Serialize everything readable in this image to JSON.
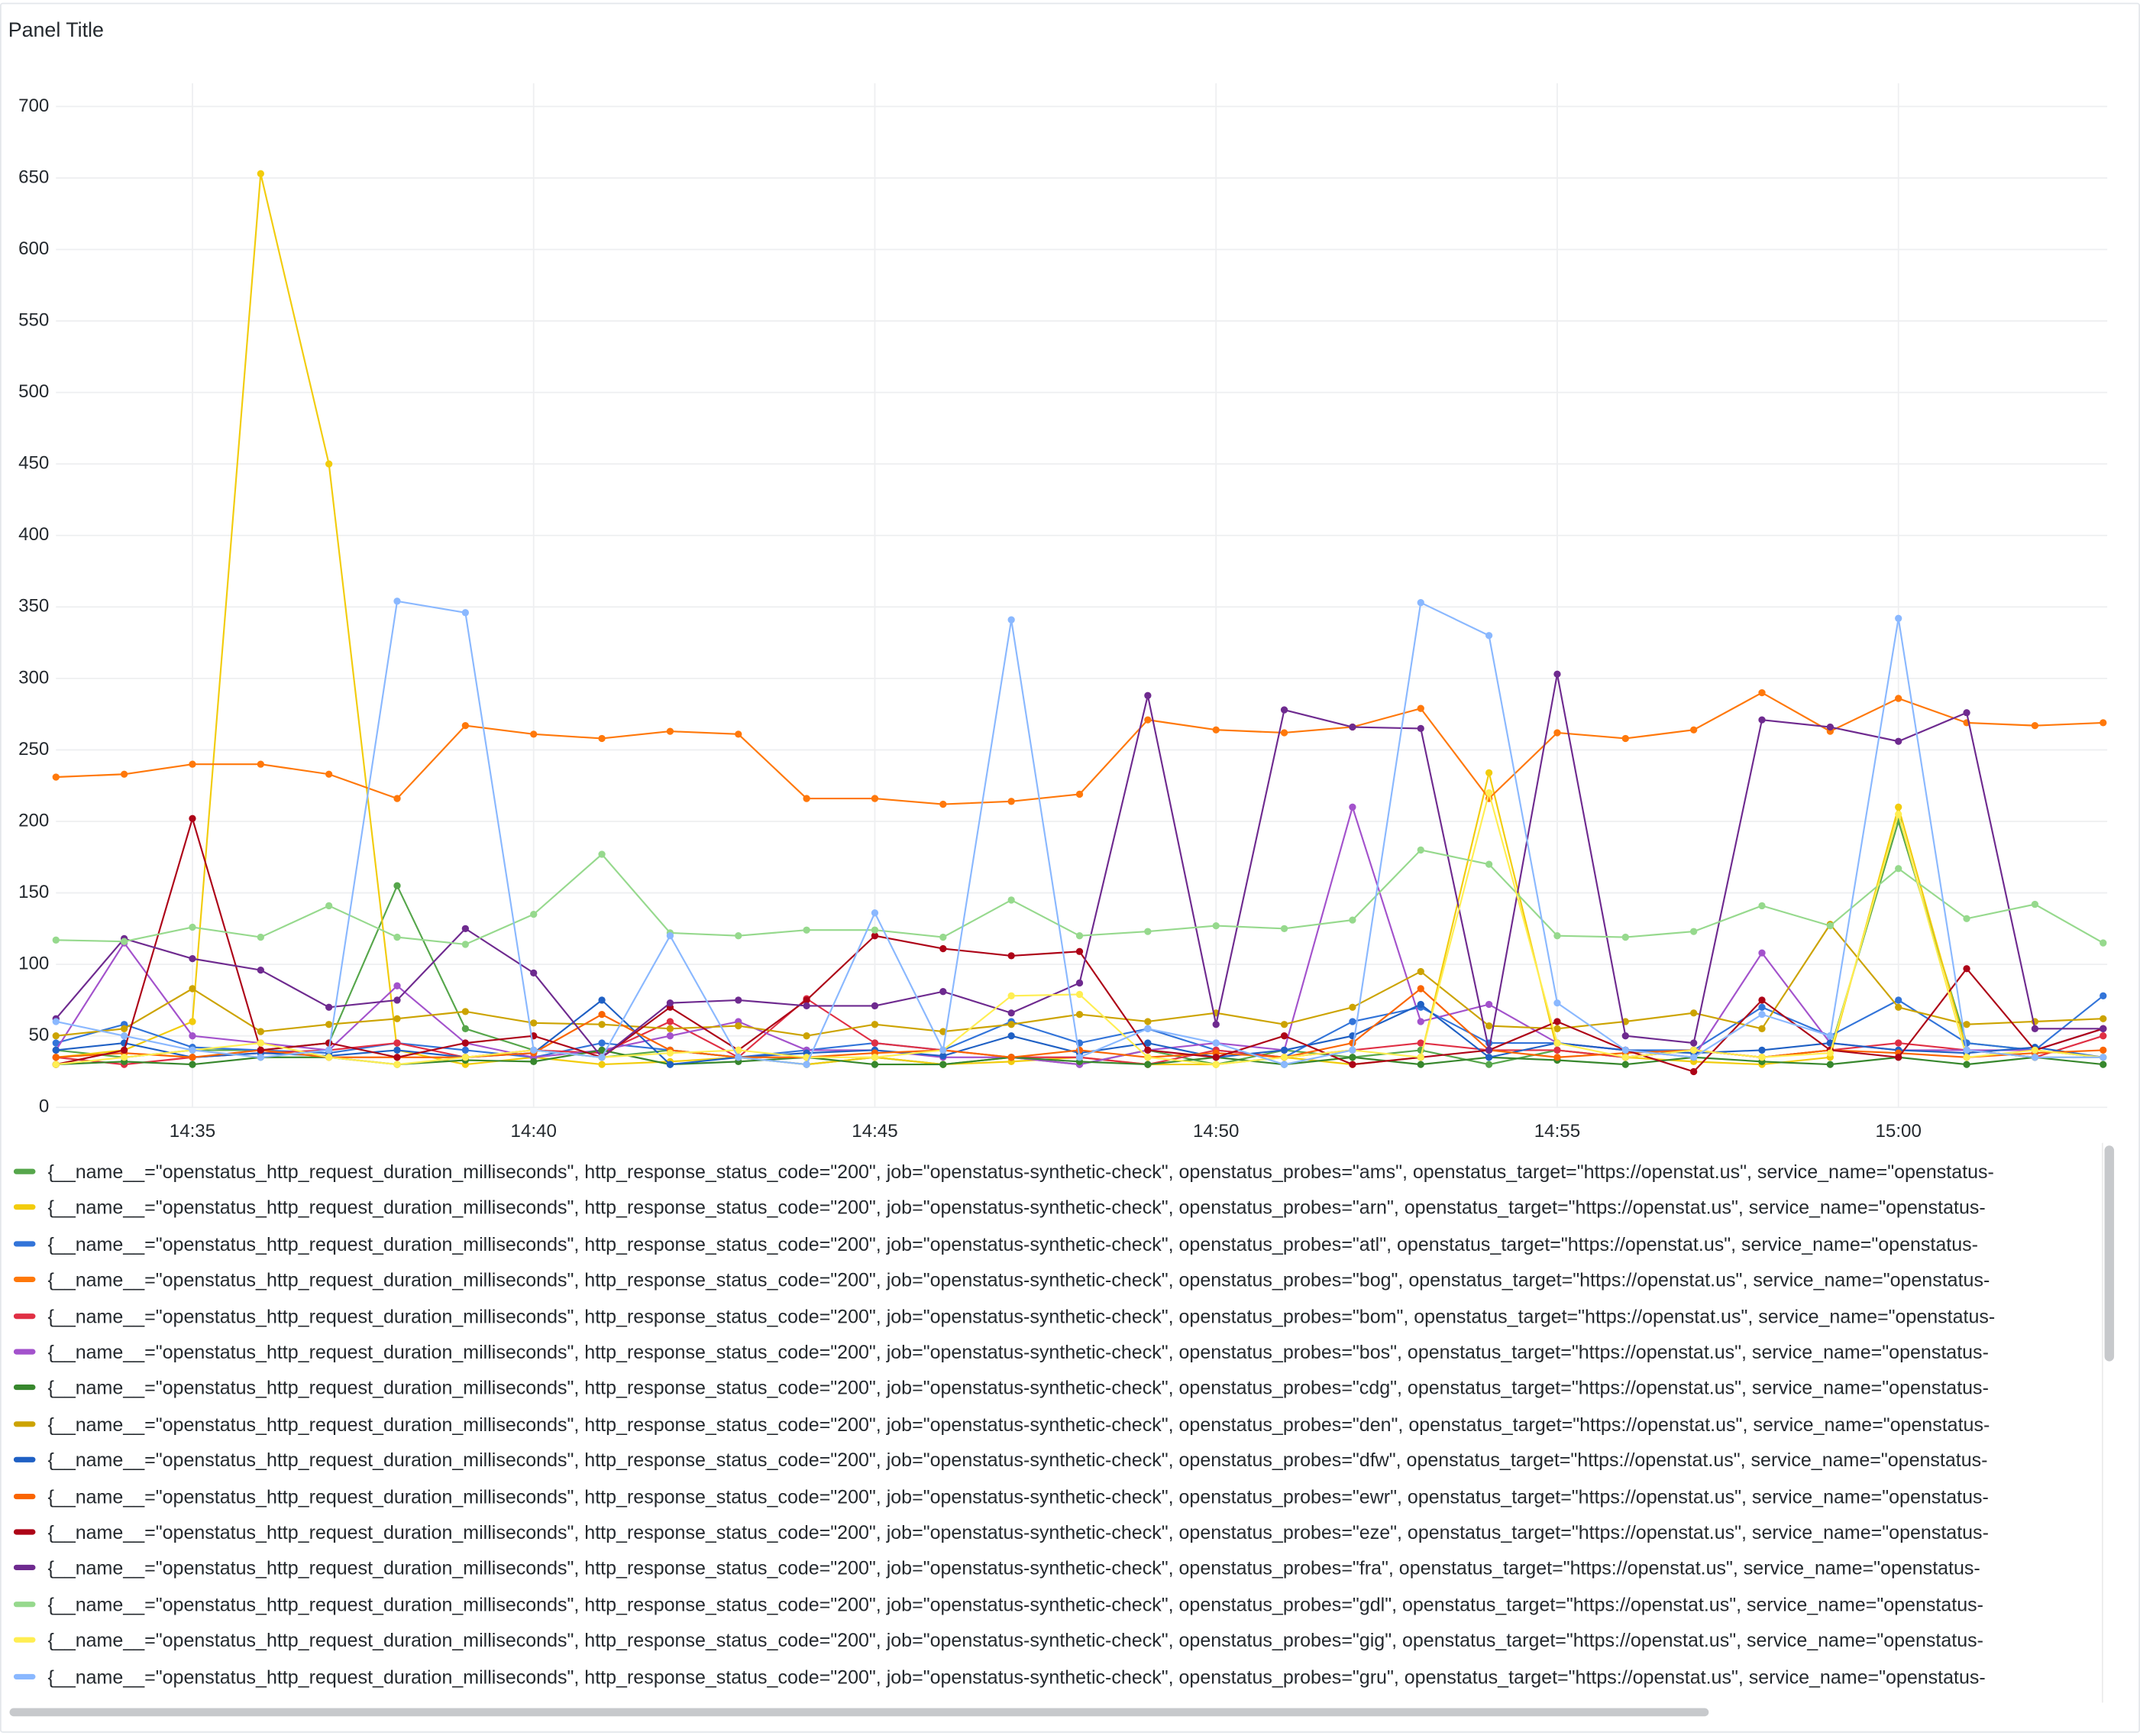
{
  "chart_data": {
    "type": "line",
    "title": "Panel Title",
    "x": [
      "14:33",
      "14:34",
      "14:35",
      "14:36",
      "14:37",
      "14:38",
      "14:39",
      "14:40",
      "14:41",
      "14:42",
      "14:43",
      "14:44",
      "14:45",
      "14:46",
      "14:47",
      "14:48",
      "14:49",
      "14:50",
      "14:51",
      "14:52",
      "14:53",
      "14:54",
      "14:55",
      "14:56",
      "14:57",
      "14:58",
      "14:59",
      "15:00",
      "15:01",
      "15:02",
      "15:03"
    ],
    "xlim": [
      "14:33",
      "15:03"
    ],
    "xticks": [
      "14:35",
      "14:40",
      "14:45",
      "14:50",
      "14:55",
      "15:00"
    ],
    "ylim": [
      0,
      700
    ],
    "yticks": [
      0,
      50,
      100,
      150,
      200,
      250,
      300,
      350,
      400,
      450,
      500,
      550,
      600,
      650,
      700
    ],
    "grid": true,
    "series": [
      {
        "name": "{__name__=\"openstatus_http_request_duration_milliseconds\", http_response_status_code=\"200\", job=\"openstatus-synthetic-check\", openstatus_probes=\"ams\", openstatus_target=\"https://openstat.us\", service_name=\"openstatus-",
        "color": "#56a64b",
        "values": [
          40,
          35,
          40,
          40,
          45,
          155,
          55,
          40,
          35,
          40,
          35,
          30,
          35,
          30,
          35,
          30,
          40,
          30,
          40,
          35,
          40,
          30,
          40,
          35,
          40,
          35,
          40,
          200,
          45,
          40,
          35
        ]
      },
      {
        "name": "{__name__=\"openstatus_http_request_duration_milliseconds\", http_response_status_code=\"200\", job=\"openstatus-synthetic-check\", openstatus_probes=\"arn\", openstatus_target=\"https://openstat.us\", service_name=\"openstatus-",
        "color": "#f2cc0c",
        "values": [
          35,
          40,
          60,
          653,
          450,
          40,
          30,
          35,
          30,
          32,
          35,
          30,
          35,
          30,
          32,
          35,
          30,
          30,
          35,
          30,
          35,
          234,
          40,
          35,
          32,
          30,
          35,
          210,
          40,
          35,
          35
        ]
      },
      {
        "name": "{__name__=\"openstatus_http_request_duration_milliseconds\", http_response_status_code=\"200\", job=\"openstatus-synthetic-check\", openstatus_probes=\"atl\", openstatus_target=\"https://openstat.us\", service_name=\"openstatus-",
        "color": "#3274d9",
        "values": [
          45,
          58,
          42,
          40,
          38,
          45,
          40,
          35,
          45,
          40,
          35,
          40,
          45,
          40,
          60,
          45,
          55,
          40,
          35,
          60,
          70,
          45,
          45,
          40,
          40,
          70,
          50,
          75,
          45,
          40,
          78
        ]
      },
      {
        "name": "{__name__=\"openstatus_http_request_duration_milliseconds\", http_response_status_code=\"200\", job=\"openstatus-synthetic-check\", openstatus_probes=\"bog\", openstatus_target=\"https://openstat.us\", service_name=\"openstatus-",
        "color": "#ff780a",
        "values": [
          231,
          233,
          240,
          240,
          233,
          216,
          267,
          261,
          258,
          263,
          261,
          216,
          216,
          212,
          214,
          219,
          271,
          264,
          262,
          266,
          279,
          216,
          262,
          258,
          264,
          290,
          263,
          286,
          269,
          267,
          269
        ]
      },
      {
        "name": "{__name__=\"openstatus_http_request_duration_milliseconds\", http_response_status_code=\"200\", job=\"openstatus-synthetic-check\", openstatus_probes=\"bom\", openstatus_target=\"https://openstat.us\", service_name=\"openstatus-",
        "color": "#e02f44",
        "values": [
          35,
          30,
          35,
          38,
          40,
          45,
          35,
          40,
          38,
          60,
          35,
          76,
          45,
          40,
          35,
          35,
          30,
          40,
          35,
          40,
          45,
          40,
          40,
          35,
          40,
          35,
          40,
          45,
          40,
          35,
          50
        ]
      },
      {
        "name": "{__name__=\"openstatus_http_request_duration_milliseconds\", http_response_status_code=\"200\", job=\"openstatus-synthetic-check\", openstatus_probes=\"bos\", openstatus_target=\"https://openstat.us\", service_name=\"openstatus-",
        "color": "#a352cc",
        "values": [
          40,
          115,
          50,
          45,
          40,
          85,
          45,
          35,
          40,
          50,
          60,
          40,
          40,
          35,
          35,
          30,
          40,
          45,
          40,
          210,
          60,
          72,
          45,
          40,
          35,
          108,
          45,
          40,
          40,
          40,
          55
        ]
      },
      {
        "name": "{__name__=\"openstatus_http_request_duration_milliseconds\", http_response_status_code=\"200\", job=\"openstatus-synthetic-check\", openstatus_probes=\"cdg\", openstatus_target=\"https://openstat.us\", service_name=\"openstatus-",
        "color": "#37872d",
        "values": [
          30,
          32,
          30,
          35,
          35,
          30,
          33,
          32,
          40,
          30,
          32,
          35,
          30,
          30,
          35,
          32,
          30,
          35,
          30,
          35,
          30,
          35,
          33,
          30,
          35,
          32,
          30,
          35,
          30,
          35,
          30
        ]
      },
      {
        "name": "{__name__=\"openstatus_http_request_duration_milliseconds\", http_response_status_code=\"200\", job=\"openstatus-synthetic-check\", openstatus_probes=\"den\", openstatus_target=\"https://openstat.us\", service_name=\"openstatus-",
        "color": "#cca300",
        "values": [
          50,
          55,
          83,
          53,
          58,
          62,
          67,
          59,
          58,
          55,
          57,
          50,
          58,
          53,
          58,
          65,
          60,
          66,
          58,
          70,
          95,
          57,
          55,
          60,
          66,
          55,
          128,
          70,
          58,
          60,
          62
        ]
      },
      {
        "name": "{__name__=\"openstatus_http_request_duration_milliseconds\", http_response_status_code=\"200\", job=\"openstatus-synthetic-check\", openstatus_probes=\"dfw\", openstatus_target=\"https://openstat.us\", service_name=\"openstatus-",
        "color": "#1f60c4",
        "values": [
          40,
          45,
          35,
          38,
          36,
          40,
          35,
          38,
          75,
          30,
          35,
          38,
          40,
          36,
          50,
          38,
          45,
          35,
          40,
          50,
          72,
          35,
          45,
          40,
          38,
          40,
          45,
          40,
          38,
          42,
          35
        ]
      },
      {
        "name": "{__name__=\"openstatus_http_request_duration_milliseconds\", http_response_status_code=\"200\", job=\"openstatus-synthetic-check\", openstatus_probes=\"ewr\", openstatus_target=\"https://openstat.us\", service_name=\"openstatus-",
        "color": "#fa6400",
        "values": [
          35,
          38,
          35,
          40,
          35,
          35,
          35,
          38,
          65,
          40,
          35,
          35,
          38,
          40,
          35,
          40,
          35,
          38,
          35,
          45,
          83,
          40,
          35,
          38,
          40,
          35,
          40,
          38,
          35,
          38,
          40
        ]
      },
      {
        "name": "{__name__=\"openstatus_http_request_duration_milliseconds\", http_response_status_code=\"200\", job=\"openstatus-synthetic-check\", openstatus_probes=\"eze\", openstatus_target=\"https://openstat.us\", service_name=\"openstatus-",
        "color": "#ad0317",
        "values": [
          30,
          40,
          202,
          40,
          45,
          35,
          45,
          50,
          35,
          70,
          40,
          75,
          120,
          111,
          106,
          109,
          40,
          35,
          50,
          30,
          35,
          40,
          60,
          40,
          25,
          75,
          40,
          35,
          97,
          40,
          55
        ]
      },
      {
        "name": "{__name__=\"openstatus_http_request_duration_milliseconds\", http_response_status_code=\"200\", job=\"openstatus-synthetic-check\", openstatus_probes=\"fra\", openstatus_target=\"https://openstat.us\", service_name=\"openstatus-",
        "color": "#6e2a8f",
        "values": [
          62,
          118,
          104,
          96,
          70,
          75,
          125,
          94,
          35,
          73,
          75,
          71,
          71,
          81,
          66,
          87,
          288,
          58,
          278,
          266,
          265,
          40,
          303,
          50,
          45,
          271,
          266,
          256,
          276,
          55,
          55
        ]
      },
      {
        "name": "{__name__=\"openstatus_http_request_duration_milliseconds\", http_response_status_code=\"200\", job=\"openstatus-synthetic-check\", openstatus_probes=\"gdl\", openstatus_target=\"https://openstat.us\", service_name=\"openstatus-",
        "color": "#96d98d",
        "values": [
          117,
          116,
          126,
          119,
          141,
          119,
          114,
          135,
          177,
          122,
          120,
          124,
          124,
          119,
          145,
          120,
          123,
          127,
          125,
          131,
          180,
          170,
          120,
          119,
          123,
          141,
          127,
          167,
          132,
          142,
          115
        ]
      },
      {
        "name": "{__name__=\"openstatus_http_request_duration_milliseconds\", http_response_status_code=\"200\", job=\"openstatus-synthetic-check\", openstatus_probes=\"gig\", openstatus_target=\"https://openstat.us\", service_name=\"openstatus-",
        "color": "#ffee52",
        "values": [
          30,
          35,
          40,
          45,
          35,
          30,
          35,
          40,
          35,
          38,
          40,
          35,
          35,
          40,
          78,
          79,
          35,
          30,
          35,
          40,
          35,
          220,
          45,
          35,
          40,
          35,
          38,
          205,
          35,
          40,
          35
        ]
      },
      {
        "name": "{__name__=\"openstatus_http_request_duration_milliseconds\", http_response_status_code=\"200\", job=\"openstatus-synthetic-check\", openstatus_probes=\"gru\", openstatus_target=\"https://openstat.us\", service_name=\"openstatus-",
        "color": "#8ab8ff",
        "values": [
          60,
          50,
          40,
          35,
          40,
          354,
          346,
          40,
          35,
          120,
          35,
          30,
          136,
          40,
          341,
          35,
          55,
          45,
          30,
          40,
          353,
          330,
          73,
          40,
          35,
          65,
          50,
          342,
          40,
          35,
          35
        ]
      }
    ]
  }
}
